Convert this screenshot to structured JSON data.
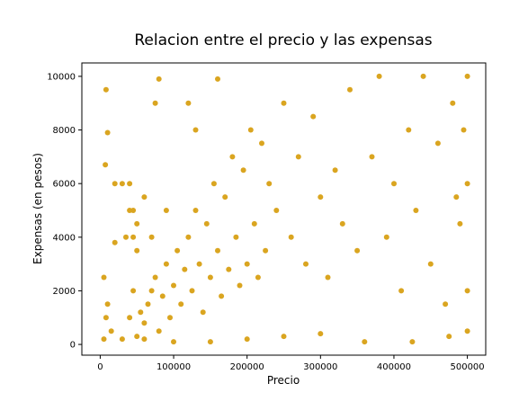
{
  "chart_data": {
    "type": "scatter",
    "title": "Relacion entre el precio y las expensas",
    "xlabel": "Precio",
    "ylabel": "Expensas (en pesos)",
    "xlim": [
      -25000,
      525000
    ],
    "ylim": [
      -400,
      10500
    ],
    "xticks": [
      0,
      100000,
      200000,
      300000,
      400000,
      500000
    ],
    "xtick_labels": [
      "0",
      "100000",
      "200000",
      "300000",
      "400000",
      "500000"
    ],
    "yticks": [
      0,
      2000,
      4000,
      6000,
      8000,
      10000
    ],
    "ytick_labels": [
      "0",
      "2000",
      "4000",
      "6000",
      "8000",
      "10000"
    ],
    "grid": false,
    "legend": "none",
    "marker_color": "#DAA520",
    "series": [
      {
        "points": [
          [
            8000,
            9500
          ],
          [
            10000,
            7900
          ],
          [
            7000,
            6700
          ],
          [
            20000,
            6000
          ],
          [
            30000,
            6000
          ],
          [
            40000,
            6000
          ],
          [
            80000,
            9900
          ],
          [
            160000,
            9900
          ],
          [
            75000,
            9000
          ],
          [
            120000,
            9000
          ],
          [
            130000,
            8000
          ],
          [
            20000,
            3800
          ],
          [
            35000,
            4000
          ],
          [
            45000,
            5000
          ],
          [
            50000,
            4500
          ],
          [
            60000,
            5500
          ],
          [
            55000,
            1200
          ],
          [
            60000,
            800
          ],
          [
            65000,
            1500
          ],
          [
            70000,
            2000
          ],
          [
            75000,
            2500
          ],
          [
            80000,
            500
          ],
          [
            85000,
            1800
          ],
          [
            90000,
            3000
          ],
          [
            95000,
            1000
          ],
          [
            100000,
            2200
          ],
          [
            105000,
            3500
          ],
          [
            110000,
            1500
          ],
          [
            115000,
            2800
          ],
          [
            120000,
            4000
          ],
          [
            125000,
            2000
          ],
          [
            130000,
            5000
          ],
          [
            135000,
            3000
          ],
          [
            140000,
            1200
          ],
          [
            145000,
            4500
          ],
          [
            150000,
            2500
          ],
          [
            155000,
            6000
          ],
          [
            160000,
            3500
          ],
          [
            165000,
            1800
          ],
          [
            170000,
            5500
          ],
          [
            175000,
            2800
          ],
          [
            180000,
            7000
          ],
          [
            185000,
            4000
          ],
          [
            190000,
            2200
          ],
          [
            195000,
            6500
          ],
          [
            200000,
            3000
          ],
          [
            205000,
            8000
          ],
          [
            210000,
            4500
          ],
          [
            215000,
            2500
          ],
          [
            220000,
            7500
          ],
          [
            225000,
            3500
          ],
          [
            230000,
            6000
          ],
          [
            240000,
            5000
          ],
          [
            250000,
            9000
          ],
          [
            260000,
            4000
          ],
          [
            270000,
            7000
          ],
          [
            280000,
            3000
          ],
          [
            290000,
            8500
          ],
          [
            300000,
            5500
          ],
          [
            310000,
            2500
          ],
          [
            320000,
            6500
          ],
          [
            330000,
            4500
          ],
          [
            340000,
            9500
          ],
          [
            350000,
            3500
          ],
          [
            360000,
            100
          ],
          [
            370000,
            7000
          ],
          [
            380000,
            10000
          ],
          [
            390000,
            4000
          ],
          [
            400000,
            6000
          ],
          [
            410000,
            2000
          ],
          [
            420000,
            8000
          ],
          [
            425000,
            100
          ],
          [
            430000,
            5000
          ],
          [
            440000,
            10000
          ],
          [
            450000,
            3000
          ],
          [
            460000,
            7500
          ],
          [
            470000,
            1500
          ],
          [
            480000,
            9000
          ],
          [
            490000,
            4500
          ],
          [
            500000,
            10000
          ],
          [
            500000,
            6000
          ],
          [
            500000,
            2000
          ],
          [
            495000,
            8000
          ],
          [
            500000,
            500
          ],
          [
            485000,
            5500
          ],
          [
            475000,
            300
          ],
          [
            5000,
            200
          ],
          [
            8000,
            1000
          ],
          [
            5000,
            2500
          ],
          [
            10000,
            1500
          ],
          [
            15000,
            500
          ],
          [
            30000,
            200
          ],
          [
            40000,
            1000
          ],
          [
            45000,
            2000
          ],
          [
            50000,
            300
          ],
          [
            60000,
            200
          ],
          [
            100000,
            100
          ],
          [
            150000,
            100
          ],
          [
            200000,
            200
          ],
          [
            250000,
            300
          ],
          [
            300000,
            400
          ],
          [
            40000,
            5000
          ],
          [
            45000,
            4000
          ],
          [
            50000,
            3500
          ],
          [
            70000,
            4000
          ],
          [
            90000,
            5000
          ]
        ]
      }
    ]
  }
}
